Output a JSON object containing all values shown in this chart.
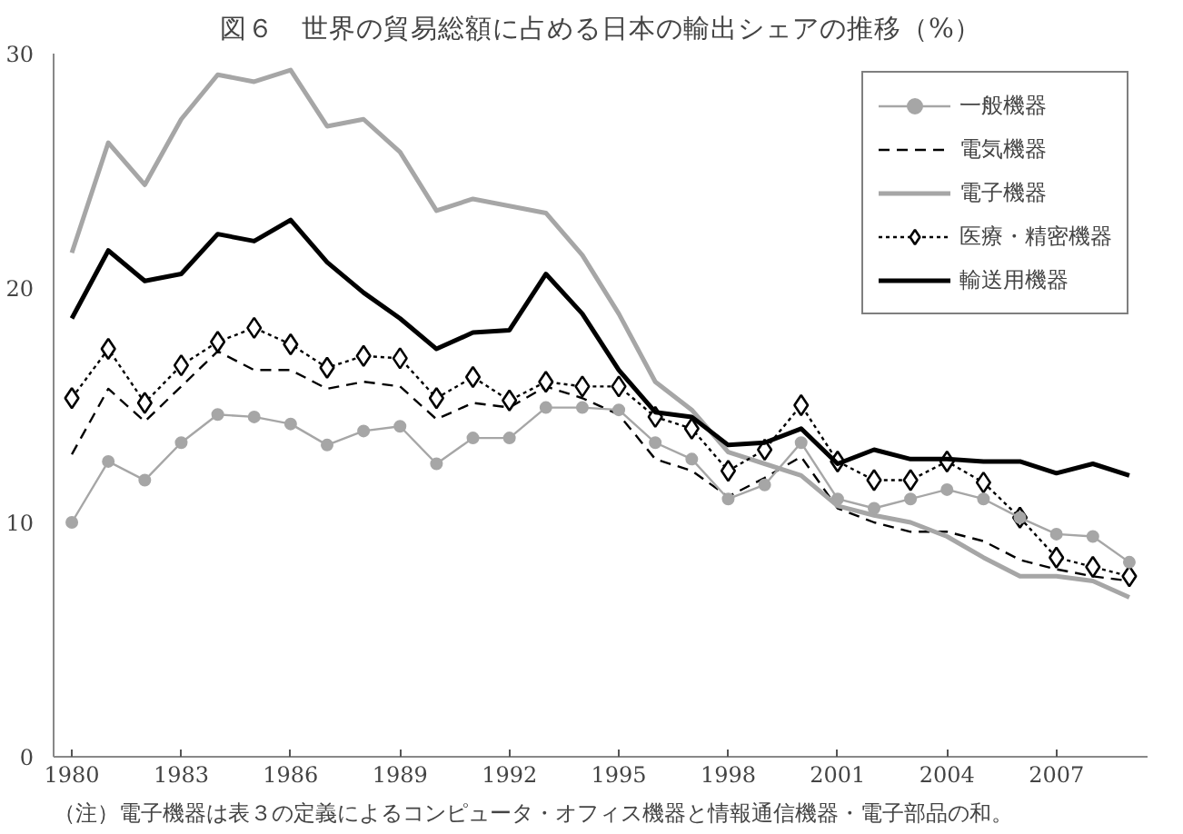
{
  "chart_data": {
    "type": "line",
    "title": "図６　世界の貿易総額に占める日本の輸出シェアの推移（%）",
    "x": [
      1980,
      1981,
      1982,
      1983,
      1984,
      1985,
      1986,
      1987,
      1988,
      1989,
      1990,
      1991,
      1992,
      1993,
      1994,
      1995,
      1996,
      1997,
      1998,
      1999,
      2000,
      2001,
      2002,
      2003,
      2004,
      2005,
      2006,
      2007,
      2008,
      2009
    ],
    "series": [
      {
        "name": "一般機器",
        "color": "#a6a6a6",
        "marker": "circle",
        "line_style": "solid",
        "values": [
          10.0,
          12.6,
          11.8,
          13.4,
          14.6,
          14.5,
          14.2,
          13.3,
          13.9,
          14.1,
          12.5,
          13.6,
          13.6,
          14.9,
          14.9,
          14.8,
          13.4,
          12.7,
          11.0,
          11.6,
          13.4,
          11.0,
          10.6,
          11.0,
          11.4,
          11.0,
          10.2,
          9.5,
          9.4,
          8.3
        ]
      },
      {
        "name": "電気機器",
        "color": "#000000",
        "marker": "none",
        "line_style": "dashed",
        "values": [
          12.9,
          15.7,
          14.3,
          15.8,
          17.3,
          16.5,
          16.5,
          15.7,
          16.0,
          15.8,
          14.4,
          15.1,
          14.9,
          15.8,
          15.3,
          14.6,
          12.7,
          12.2,
          11.1,
          11.9,
          12.8,
          10.6,
          10.0,
          9.6,
          9.6,
          9.2,
          8.4,
          8.0,
          7.7,
          7.5
        ]
      },
      {
        "name": "電子機器",
        "color": "#a6a6a6",
        "marker": "none",
        "line_style": "solid",
        "values": [
          21.5,
          26.2,
          24.4,
          27.2,
          29.1,
          28.8,
          29.3,
          26.9,
          27.2,
          25.8,
          23.3,
          23.8,
          23.5,
          23.2,
          21.4,
          18.9,
          16.0,
          14.8,
          13.0,
          12.5,
          12.0,
          10.7,
          10.3,
          10.0,
          9.4,
          8.5,
          7.7,
          7.7,
          7.5,
          6.8
        ]
      },
      {
        "name": "医療・精密機器",
        "color": "#000000",
        "marker": "diamond",
        "line_style": "dotted",
        "values": [
          15.3,
          17.4,
          15.1,
          16.7,
          17.7,
          18.3,
          17.6,
          16.6,
          17.1,
          17.0,
          15.3,
          16.2,
          15.2,
          16.0,
          15.8,
          15.8,
          14.5,
          14.0,
          12.2,
          13.1,
          15.0,
          12.6,
          11.8,
          11.8,
          12.6,
          11.7,
          10.2,
          8.5,
          8.1,
          7.7
        ]
      },
      {
        "name": "輸送用機器",
        "color": "#000000",
        "marker": "none",
        "line_style": "solid",
        "values": [
          18.7,
          21.6,
          20.3,
          20.6,
          22.3,
          22.0,
          22.9,
          21.1,
          19.8,
          18.7,
          17.4,
          18.1,
          18.2,
          20.6,
          18.9,
          16.5,
          14.7,
          14.5,
          13.3,
          13.4,
          14.0,
          12.5,
          13.1,
          12.7,
          12.7,
          12.6,
          12.6,
          12.1,
          12.5,
          12.0
        ]
      }
    ],
    "xlim": [
      1979.5,
      2009.5
    ],
    "xticks": [
      1980,
      1983,
      1986,
      1989,
      1992,
      1995,
      1998,
      2001,
      2004,
      2007
    ],
    "ylim": [
      0,
      30
    ],
    "yticks": [
      0,
      10,
      20,
      30
    ],
    "grid": false,
    "legend": "top right",
    "annotations": [
      "（注）電子機器は表３の定義によるコンピュータ・オフィス機器と情報通信機器・電子部品の和。"
    ]
  }
}
